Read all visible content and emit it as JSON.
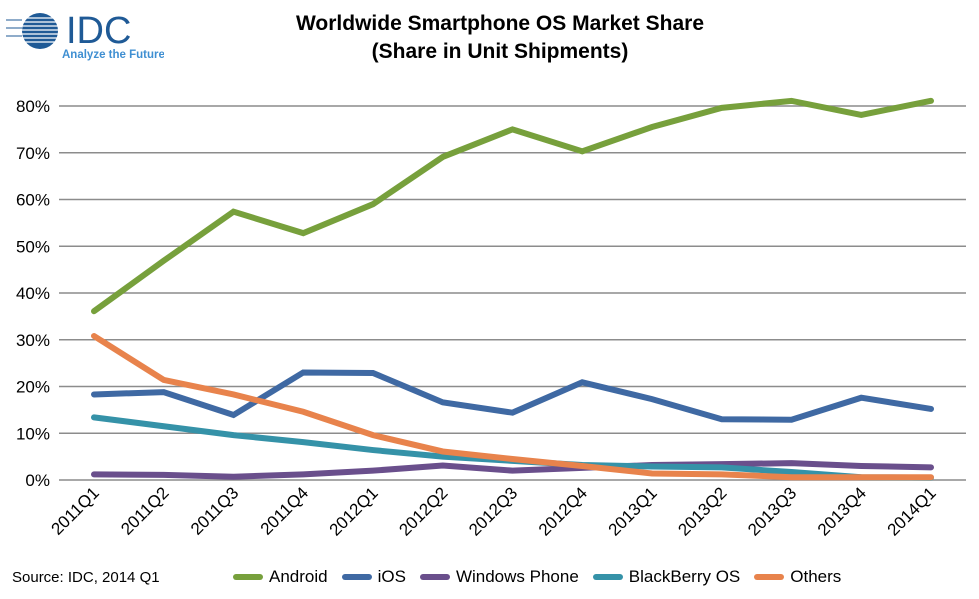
{
  "logo": {
    "text": "IDC",
    "tagline": "Analyze the Future",
    "color": "#1f5a96",
    "tagline_color": "#3f8fd2"
  },
  "source": "Source: IDC, 2014 Q1",
  "chart_data": {
    "type": "line",
    "title": "Worldwide Smartphone OS Market Share",
    "subtitle": "(Share in Unit Shipments)",
    "categories": [
      "2011Q1",
      "2011Q2",
      "2011Q3",
      "2011Q4",
      "2012Q1",
      "2012Q2",
      "2012Q3",
      "2012Q4",
      "2013Q1",
      "2013Q2",
      "2013Q3",
      "2013Q4",
      "2014Q1"
    ],
    "ylim": [
      0,
      80
    ],
    "yticks": [
      "0%",
      "10%",
      "20%",
      "30%",
      "40%",
      "50%",
      "60%",
      "70%",
      "80%"
    ],
    "grid": true,
    "legend": "bottom",
    "series": [
      {
        "name": "Android",
        "color": "#77a03c",
        "values": [
          36.1,
          46.9,
          57.4,
          52.8,
          59.0,
          69.1,
          75.0,
          70.3,
          75.5,
          79.6,
          81.1,
          78.1,
          81.1
        ]
      },
      {
        "name": "iOS",
        "color": "#3f69a3",
        "values": [
          18.3,
          18.8,
          13.9,
          23.0,
          22.9,
          16.6,
          14.4,
          20.9,
          17.3,
          13.0,
          12.9,
          17.6,
          15.2
        ]
      },
      {
        "name": "Windows Phone",
        "color": "#6a4f8c",
        "values": [
          1.2,
          1.1,
          0.7,
          1.2,
          2.0,
          3.1,
          2.0,
          2.6,
          3.2,
          3.4,
          3.6,
          3.0,
          2.7
        ]
      },
      {
        "name": "BlackBerry OS",
        "color": "#3592a8",
        "values": [
          13.4,
          11.5,
          9.6,
          8.1,
          6.4,
          5.0,
          4.1,
          3.2,
          2.9,
          2.7,
          1.7,
          0.6,
          0.5
        ]
      },
      {
        "name": "Others",
        "color": "#e8834c",
        "values": [
          30.8,
          21.4,
          18.3,
          14.6,
          9.6,
          6.1,
          4.5,
          3.0,
          1.4,
          1.2,
          0.6,
          0.6,
          0.6
        ]
      }
    ]
  }
}
